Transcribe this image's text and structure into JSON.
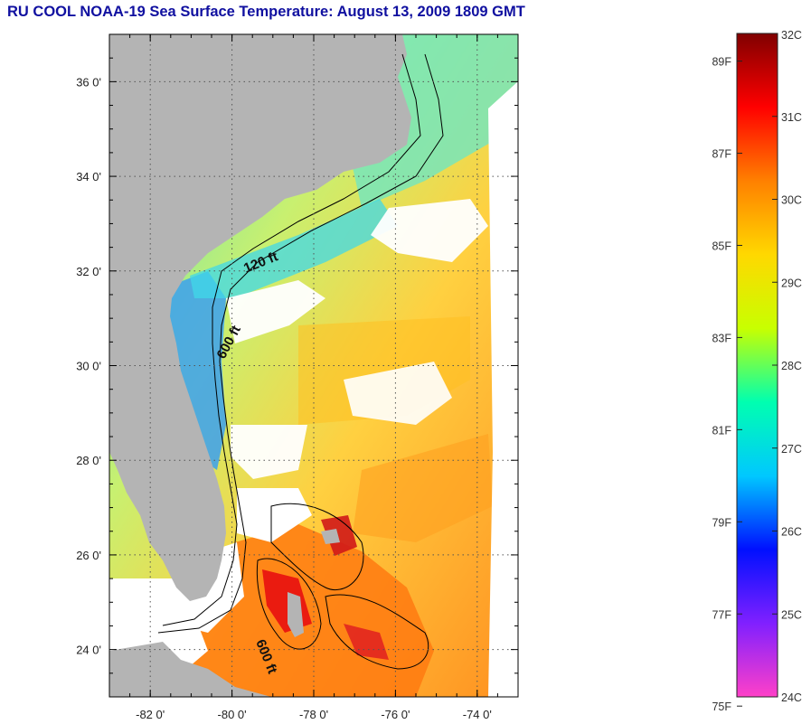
{
  "title": "RU COOL  NOAA-19  Sea Surface Temperature:  August 13, 2009 1809 GMT",
  "map": {
    "lat_labels": [
      "36 0'",
      "34 0'",
      "32 0'",
      "30 0'",
      "28 0'",
      "26 0'",
      "24 0'"
    ],
    "lon_labels": [
      "-82 0'",
      "-80 0'",
      "-78 0'",
      "-76 0'",
      "-74 0'"
    ],
    "lat_values": [
      36,
      34,
      32,
      30,
      28,
      26,
      24
    ],
    "lon_values": [
      -82,
      -80,
      -78,
      -76,
      -74
    ],
    "isobath_labels": [
      "120 ft",
      "600 ft",
      "600 ft"
    ],
    "land_color": "#b4b4b4",
    "cloud_color": "#ffffff"
  },
  "colorbar": {
    "f_labels": [
      "89F",
      "87F",
      "85F",
      "83F",
      "81F",
      "79F",
      "77F",
      "75F"
    ],
    "c_labels": [
      "32C",
      "31C",
      "30C",
      "29C",
      "28C",
      "27C",
      "26C",
      "25C",
      "24C"
    ],
    "f_values": [
      89,
      87,
      85,
      83,
      81,
      79,
      77,
      75
    ],
    "c_values": [
      32,
      31,
      30,
      29,
      28,
      27,
      26,
      25,
      24
    ],
    "range_c": [
      24,
      32
    ],
    "colors": [
      "#ff40c8",
      "#8020ff",
      "#0010ff",
      "#00c8ff",
      "#00ffb0",
      "#c8ff00",
      "#ffd800",
      "#ff8000",
      "#ff0000",
      "#800000"
    ]
  }
}
